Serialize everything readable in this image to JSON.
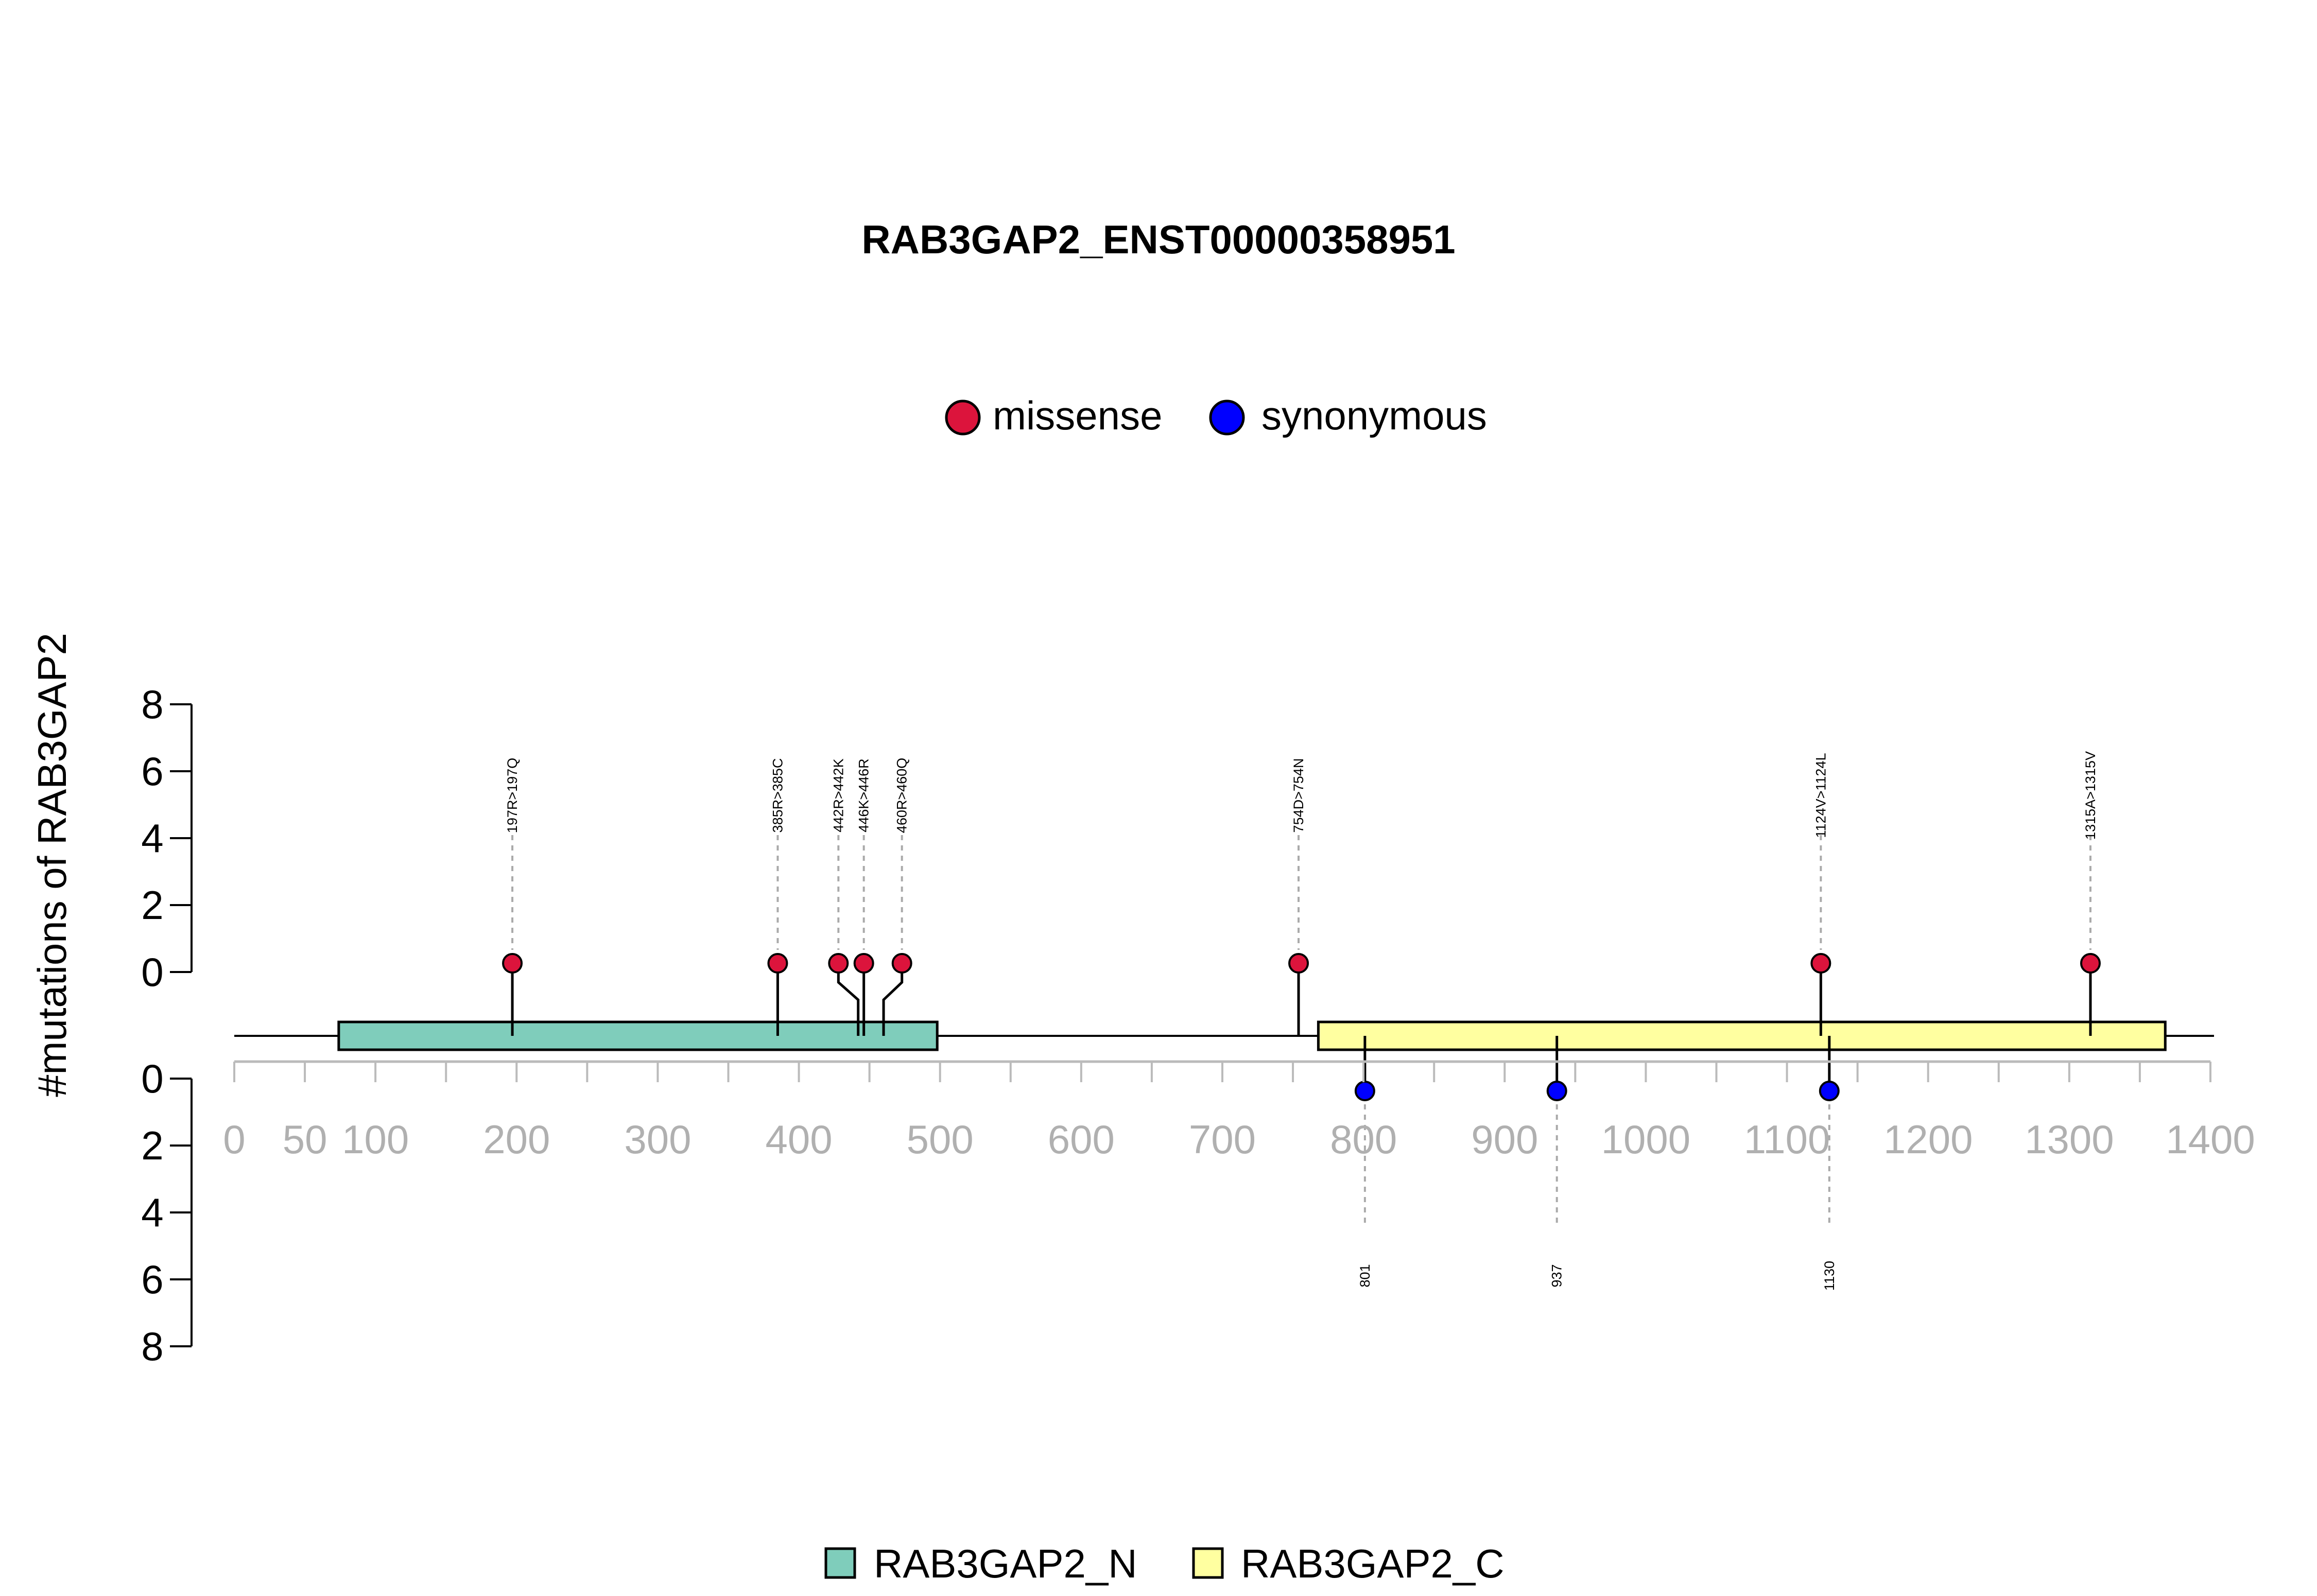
{
  "chart_data": {
    "type": "lollipop",
    "title": "RAB3GAP2_ENST00000358951",
    "ylabel": "#mutations of RAB3GAP2",
    "xlim": [
      0,
      1400
    ],
    "x_ticks": [
      0,
      50,
      100,
      200,
      300,
      400,
      500,
      600,
      700,
      800,
      900,
      1000,
      1100,
      1200,
      1300,
      1400
    ],
    "x_minor_ticks": [
      150,
      250,
      350,
      450,
      550,
      650,
      750,
      850,
      950,
      1050,
      1150,
      1250,
      1350
    ],
    "y_ticks_top": [
      0,
      2,
      4,
      6,
      8
    ],
    "y_ticks_bottom": [
      0,
      2,
      4,
      6,
      8
    ],
    "legend_mutation": [
      {
        "label": "missense",
        "color": "#DC143C"
      },
      {
        "label": "synonymous",
        "color": "#0000FF"
      }
    ],
    "legend_domain": [
      {
        "label": "RAB3GAP2_N",
        "color": "#7FCDBB"
      },
      {
        "label": "RAB3GAP2_C",
        "color": "#FFFFA0"
      }
    ],
    "domains": [
      {
        "name": "RAB3GAP2_N",
        "start": 74,
        "end": 498,
        "color": "#7FCDBB"
      },
      {
        "name": "RAB3GAP2_C",
        "start": 768,
        "end": 1368,
        "color": "#FFFFA0"
      }
    ],
    "missense": [
      {
        "label": "197R>197Q",
        "position": 197,
        "count": 1,
        "display_x": 197
      },
      {
        "label": "385R>385C",
        "position": 385,
        "count": 1,
        "display_x": 385
      },
      {
        "label": "442R>442K",
        "position": 442,
        "count": 1,
        "display_x": 428
      },
      {
        "label": "446K>446R",
        "position": 446,
        "count": 1,
        "display_x": 446
      },
      {
        "label": "460R>460Q",
        "position": 460,
        "count": 1,
        "display_x": 473
      },
      {
        "label": "754D>754N",
        "position": 754,
        "count": 1,
        "display_x": 754
      },
      {
        "label": "1124V>1124L",
        "position": 1124,
        "count": 1,
        "display_x": 1124
      },
      {
        "label": "1315A>1315V",
        "position": 1315,
        "count": 1,
        "display_x": 1315
      }
    ],
    "synonymous": [
      {
        "label": "801",
        "position": 801,
        "count": 1
      },
      {
        "label": "937",
        "position": 937,
        "count": 1
      },
      {
        "label": "1130",
        "position": 1130,
        "count": 1
      }
    ]
  }
}
